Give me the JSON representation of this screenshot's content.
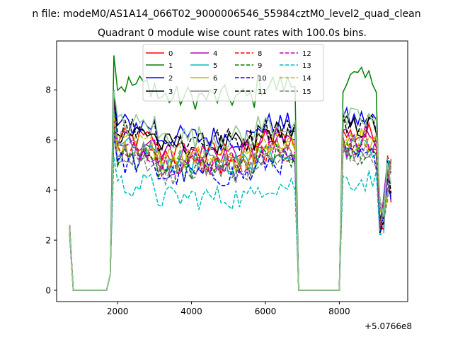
{
  "chart_data": {
    "type": "line",
    "suptitle": "n file: modeM0/AS1A14_066T02_9000006546_55984cztM0_level2_quad_clean",
    "title": "Quadrant 0 module wise count rates with 100.0s bins.",
    "xlabel": "",
    "ylabel": "",
    "x_offset_label": "+5.0766e8",
    "xlim": [
      350,
      9850
    ],
    "ylim": [
      -0.45,
      9.95
    ],
    "xticks": [
      2000,
      4000,
      6000,
      8000
    ],
    "yticks": [
      0,
      2,
      4,
      6,
      8
    ],
    "grid": false,
    "legend_position": "top-center",
    "series": [
      {
        "name": "0",
        "color": "#ff0000",
        "dash": "solid",
        "level": 6.0
      },
      {
        "name": "1",
        "color": "#008000",
        "dash": "solid",
        "level": 8.2
      },
      {
        "name": "2",
        "color": "#0000ff",
        "dash": "solid",
        "level": 6.6
      },
      {
        "name": "3",
        "color": "#000000",
        "dash": "solid",
        "level": 6.3
      },
      {
        "name": "4",
        "color": "#bf00bf",
        "dash": "solid",
        "level": 6.0
      },
      {
        "name": "5",
        "color": "#00bfbf",
        "dash": "solid",
        "level": 5.6
      },
      {
        "name": "6",
        "color": "#bfbf00",
        "dash": "solid",
        "level": 5.7
      },
      {
        "name": "7",
        "color": "#808080",
        "dash": "solid",
        "level": 5.5
      },
      {
        "name": "8",
        "color": "#ff0000",
        "dash": "dashed",
        "level": 5.5
      },
      {
        "name": "9",
        "color": "#008000",
        "dash": "dashed",
        "level": 5.3
      },
      {
        "name": "10",
        "color": "#0000ff",
        "dash": "dashed",
        "level": 5.1
      },
      {
        "name": "11",
        "color": "#000000",
        "dash": "dashed",
        "level": 6.5
      },
      {
        "name": "12",
        "color": "#bf00bf",
        "dash": "dashed",
        "level": 5.6
      },
      {
        "name": "13",
        "color": "#00bfbf",
        "dash": "dashed",
        "level": 4.2
      },
      {
        "name": "14",
        "color": "#bfbf00",
        "dash": "dashed",
        "level": 5.8
      },
      {
        "name": "15",
        "color": "#808080",
        "dash": "dashed",
        "level": 5.2
      }
    ],
    "extra_series": [
      {
        "name": "",
        "color": "#8fc98f",
        "dash": "solid",
        "level": 6.6
      }
    ],
    "segments": [
      {
        "start": 700,
        "end": 1800,
        "profile": "low"
      },
      {
        "start": 1800,
        "end": 6850,
        "profile": "high"
      },
      {
        "start": 6850,
        "end": 8050,
        "profile": "gap"
      },
      {
        "start": 8050,
        "end": 9450,
        "profile": "high_short"
      }
    ],
    "step": 100
  }
}
